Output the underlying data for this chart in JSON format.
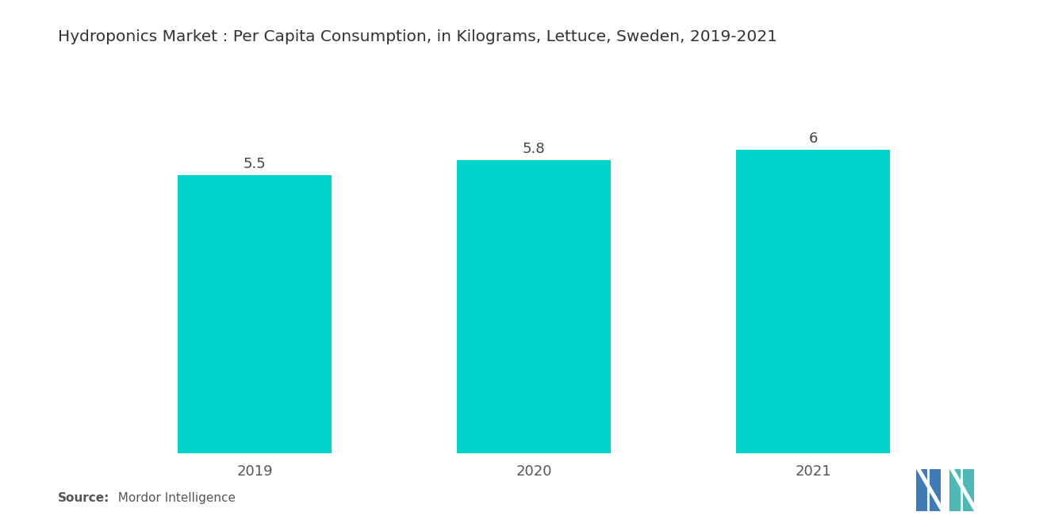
{
  "title": "Hydroponics Market : Per Capita Consumption, in Kilograms, Lettuce, Sweden, 2019-2021",
  "categories": [
    "2019",
    "2020",
    "2021"
  ],
  "values": [
    5.5,
    5.8,
    6.0
  ],
  "bar_labels": [
    "5.5",
    "5.8",
    "6"
  ],
  "bar_color": "#00D4CC",
  "background_color": "#ffffff",
  "title_fontsize": 14.5,
  "label_fontsize": 13,
  "tick_fontsize": 13,
  "source_bold": "Source:",
  "source_normal": "  Mordor Intelligence",
  "ylim": [
    0,
    7.5
  ],
  "bar_width": 0.55,
  "logo_blue": "#2B6CB0",
  "logo_teal": "#38B2AC"
}
